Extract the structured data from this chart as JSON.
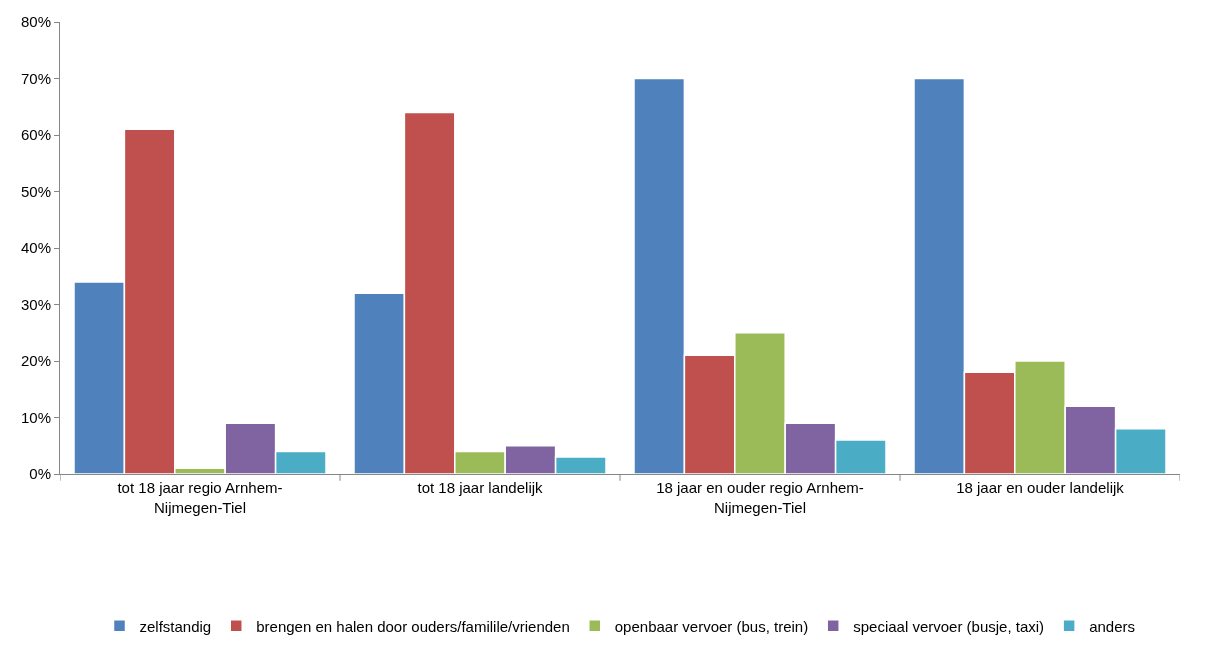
{
  "chart_data": {
    "type": "bar",
    "categories": [
      "tot 18 jaar regio Arnhem-\nNijmegen-Tiel",
      "tot 18 jaar landelijk",
      "18 jaar en ouder regio Arnhem-\nNijmegen-Tiel",
      "18 jaar en ouder landelijk"
    ],
    "series": [
      {
        "name": "zelfstandig",
        "color": "#4f81bd",
        "values": [
          34,
          32,
          70,
          70
        ]
      },
      {
        "name": "brengen en halen door ouders/familile/vrienden",
        "color": "#c0504d",
        "values": [
          61,
          64,
          21,
          18
        ]
      },
      {
        "name": "openbaar vervoer (bus, trein)",
        "color": "#9bbb59",
        "values": [
          1,
          4,
          25,
          20
        ]
      },
      {
        "name": "speciaal vervoer (busje, taxi)",
        "color": "#8064a2",
        "values": [
          9,
          5,
          9,
          12
        ]
      },
      {
        "name": "anders",
        "color": "#4bacc6",
        "values": [
          4,
          3,
          6,
          8
        ]
      }
    ],
    "ylim": [
      0,
      80
    ],
    "yticks": [
      {
        "value": 0,
        "label": "0%"
      },
      {
        "value": 10,
        "label": "10%"
      },
      {
        "value": 20,
        "label": "20%"
      },
      {
        "value": 30,
        "label": "30%"
      },
      {
        "value": 40,
        "label": "40%"
      },
      {
        "value": 50,
        "label": "50%"
      },
      {
        "value": 60,
        "label": "60%"
      },
      {
        "value": 70,
        "label": "70%"
      },
      {
        "value": 80,
        "label": "80%"
      }
    ],
    "legend": "bottom"
  }
}
